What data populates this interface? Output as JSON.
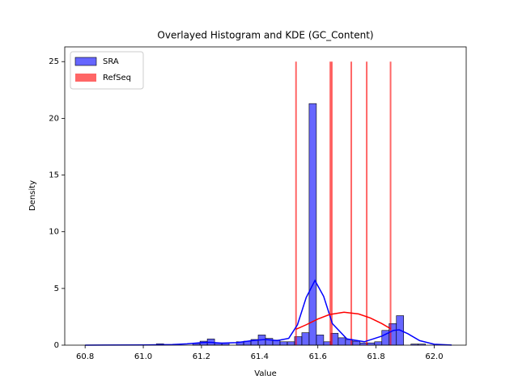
{
  "chart_data": {
    "type": "histogram",
    "title": "Overlayed Histogram and KDE (GC_Content)",
    "xlabel": "Value",
    "ylabel": "Density",
    "xlim": [
      60.73,
      62.11
    ],
    "ylim": [
      0,
      26.3
    ],
    "xticks": [
      60.8,
      {
        "value": 61,
        "label": "61.0"
      },
      61.2,
      61.4,
      61.6,
      61.8,
      {
        "value": 62,
        "label": "62.0"
      }
    ],
    "yticks": [
      0,
      5,
      10,
      15,
      20,
      25
    ],
    "legend": "upper left",
    "series": [
      {
        "name": "SRA",
        "color": "#0000ff",
        "bins": [
          60.795,
          60.82,
          60.845,
          60.87,
          60.895,
          60.92,
          60.945,
          60.97,
          60.995,
          61.02,
          61.045,
          61.07,
          61.095,
          61.12,
          61.145,
          61.17,
          61.195,
          61.22,
          61.245,
          61.27,
          61.295,
          61.32,
          61.345,
          61.37,
          61.395,
          61.42,
          61.445,
          61.47,
          61.495,
          61.52,
          61.545,
          61.57,
          61.595,
          61.62,
          61.645,
          61.67,
          61.695,
          61.72,
          61.745,
          61.77,
          61.795,
          61.82,
          61.845,
          61.87,
          61.895,
          61.92,
          61.945,
          61.97,
          61.995,
          62.02,
          62.045
        ],
        "values": [
          0,
          0,
          0,
          0,
          0,
          0,
          0,
          0,
          0,
          0,
          0.12,
          0,
          0,
          0,
          0,
          0.15,
          0.35,
          0.55,
          0.2,
          0.2,
          0,
          0.3,
          0.35,
          0.5,
          0.9,
          0.6,
          0.45,
          0.3,
          0.3,
          0.75,
          1.1,
          21.3,
          0.9,
          0.3,
          1.05,
          0.65,
          0.5,
          0.35,
          0.2,
          0.2,
          0.3,
          1.3,
          1.9,
          2.6,
          0,
          0.1,
          0.1,
          0,
          0,
          0
        ],
        "kde": {
          "x": [
            60.8,
            61.0,
            61.1,
            61.15,
            61.2,
            61.23,
            61.27,
            61.32,
            61.38,
            61.42,
            61.46,
            61.5,
            61.53,
            61.56,
            61.59,
            61.62,
            61.65,
            61.7,
            61.76,
            61.82,
            61.86,
            61.88,
            61.91,
            61.95,
            62.0,
            62.06
          ],
          "values": [
            0,
            0.02,
            0.05,
            0.12,
            0.22,
            0.25,
            0.18,
            0.22,
            0.42,
            0.5,
            0.4,
            0.6,
            1.8,
            4.2,
            5.7,
            4.3,
            1.9,
            0.55,
            0.3,
            0.8,
            1.3,
            1.35,
            1.0,
            0.4,
            0.08,
            0.01
          ]
        }
      },
      {
        "name": "RefSeq",
        "color": "#ff0000",
        "x": [
          61.525,
          61.643,
          61.648,
          61.715,
          61.768,
          61.85
        ],
        "values": [
          25,
          25,
          25,
          25,
          25,
          25
        ],
        "kde": {
          "x": [
            61.525,
            61.56,
            61.6,
            61.64,
            61.69,
            61.74,
            61.78,
            61.82,
            61.85
          ],
          "values": [
            1.4,
            1.8,
            2.3,
            2.7,
            2.9,
            2.75,
            2.4,
            1.9,
            1.45
          ]
        }
      }
    ]
  }
}
